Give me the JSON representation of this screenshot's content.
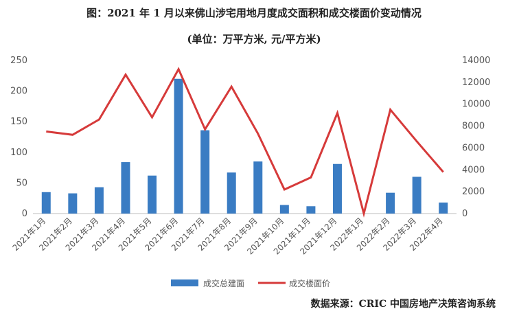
{
  "title": "图：2021 年 1 月以来佛山涉宅用地月度成交面积和成交楼面价变动情况",
  "subtitle": "(单位：万平方米, 元/平方米)",
  "source": "数据来源：CRIC 中国房地产决策咨询系统",
  "chart_data": {
    "type": "bar+line",
    "categories": [
      "2021年1月",
      "2021年2月",
      "2021年3月",
      "2021年4月",
      "2021年5月",
      "2021年6月",
      "2021年7月",
      "2021年8月",
      "2021年9月",
      "2021年10月",
      "2021年11月",
      "2021年12月",
      "2022年1月",
      "2022年2月",
      "2022年3月",
      "2022年4月"
    ],
    "series": [
      {
        "name": "成交总建面",
        "type": "bar",
        "axis": "left",
        "color": "#3a7cc3",
        "values": [
          35,
          33,
          43,
          84,
          62,
          220,
          136,
          67,
          85,
          14,
          12,
          81,
          0,
          34,
          60,
          18
        ]
      },
      {
        "name": "成交楼面价",
        "type": "line",
        "axis": "right",
        "color": "#d63a3a",
        "values": [
          7500,
          7200,
          8600,
          12700,
          8800,
          13200,
          7700,
          11600,
          7300,
          2200,
          3300,
          9200,
          0,
          9500,
          6600,
          3800
        ]
      }
    ],
    "left_axis": {
      "ylim": [
        0,
        250
      ],
      "ticks": [
        0,
        50,
        100,
        150,
        200,
        250
      ]
    },
    "right_axis": {
      "ylim": [
        0,
        14000
      ],
      "ticks": [
        0,
        2000,
        4000,
        6000,
        8000,
        10000,
        12000,
        14000
      ]
    },
    "grid": false,
    "legend": "bottom"
  }
}
